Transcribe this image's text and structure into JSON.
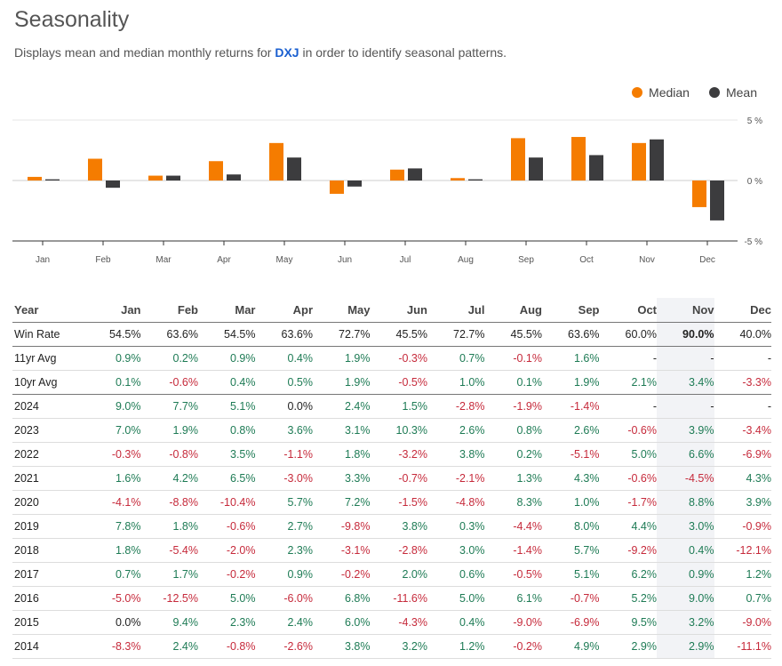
{
  "header": {
    "title": "Seasonality",
    "subtitle_pre": "Displays mean and median monthly returns for ",
    "ticker": "DXJ",
    "subtitle_post": " in order to identify seasonal patterns."
  },
  "chart_data": {
    "type": "bar",
    "categories": [
      "Jan",
      "Feb",
      "Mar",
      "Apr",
      "May",
      "Jun",
      "Jul",
      "Aug",
      "Sep",
      "Oct",
      "Nov",
      "Dec"
    ],
    "series": [
      {
        "name": "Median",
        "color": "#f57c00",
        "values": [
          0.3,
          1.8,
          0.4,
          1.6,
          3.1,
          -1.1,
          0.9,
          0.2,
          3.5,
          3.6,
          3.1,
          -2.2
        ]
      },
      {
        "name": "Mean",
        "color": "#3c3c3e",
        "values": [
          0.1,
          -0.6,
          0.4,
          0.5,
          1.9,
          -0.5,
          1.0,
          0.1,
          1.9,
          2.1,
          3.4,
          -3.3
        ]
      }
    ],
    "ylim": [
      -5,
      5
    ],
    "yticks": [
      "5 %",
      "0 %",
      "-5 %"
    ],
    "legend": "top-right"
  },
  "table": {
    "headers": [
      "Year",
      "Jan",
      "Feb",
      "Mar",
      "Apr",
      "May",
      "Jun",
      "Jul",
      "Aug",
      "Sep",
      "Oct",
      "Nov",
      "Dec"
    ],
    "rows": [
      [
        "Win Rate",
        "54.5%",
        "63.6%",
        "54.5%",
        "63.6%",
        "72.7%",
        "45.5%",
        "72.7%",
        "45.5%",
        "63.6%",
        "60.0%",
        "90.0%",
        "40.0%"
      ],
      [
        "11yr Avg",
        "0.9%",
        "0.2%",
        "0.9%",
        "0.4%",
        "1.9%",
        "-0.3%",
        "0.7%",
        "-0.1%",
        "1.6%",
        "-",
        "-",
        "-"
      ],
      [
        "10yr Avg",
        "0.1%",
        "-0.6%",
        "0.4%",
        "0.5%",
        "1.9%",
        "-0.5%",
        "1.0%",
        "0.1%",
        "1.9%",
        "2.1%",
        "3.4%",
        "-3.3%"
      ],
      [
        "2024",
        "9.0%",
        "7.7%",
        "5.1%",
        "0.0%",
        "2.4%",
        "1.5%",
        "-2.8%",
        "-1.9%",
        "-1.4%",
        "-",
        "-",
        "-"
      ],
      [
        "2023",
        "7.0%",
        "1.9%",
        "0.8%",
        "3.6%",
        "3.1%",
        "10.3%",
        "2.6%",
        "0.8%",
        "2.6%",
        "-0.6%",
        "3.9%",
        "-3.4%"
      ],
      [
        "2022",
        "-0.3%",
        "-0.8%",
        "3.5%",
        "-1.1%",
        "1.8%",
        "-3.2%",
        "3.8%",
        "0.2%",
        "-5.1%",
        "5.0%",
        "6.6%",
        "-6.9%"
      ],
      [
        "2021",
        "1.6%",
        "4.2%",
        "6.5%",
        "-3.0%",
        "3.3%",
        "-0.7%",
        "-2.1%",
        "1.3%",
        "4.3%",
        "-0.6%",
        "-4.5%",
        "4.3%"
      ],
      [
        "2020",
        "-4.1%",
        "-8.8%",
        "-10.4%",
        "5.7%",
        "7.2%",
        "-1.5%",
        "-4.8%",
        "8.3%",
        "1.0%",
        "-1.7%",
        "8.8%",
        "3.9%"
      ],
      [
        "2019",
        "7.8%",
        "1.8%",
        "-0.6%",
        "2.7%",
        "-9.8%",
        "3.8%",
        "0.3%",
        "-4.4%",
        "8.0%",
        "4.4%",
        "3.0%",
        "-0.9%"
      ],
      [
        "2018",
        "1.8%",
        "-5.4%",
        "-2.0%",
        "2.3%",
        "-3.1%",
        "-2.8%",
        "3.0%",
        "-1.4%",
        "5.7%",
        "-9.2%",
        "0.4%",
        "-12.1%"
      ],
      [
        "2017",
        "0.7%",
        "1.7%",
        "-0.2%",
        "0.9%",
        "-0.2%",
        "2.0%",
        "0.6%",
        "-0.5%",
        "5.1%",
        "6.2%",
        "0.9%",
        "1.2%"
      ],
      [
        "2016",
        "-5.0%",
        "-12.5%",
        "5.0%",
        "-6.0%",
        "6.8%",
        "-11.6%",
        "5.0%",
        "6.1%",
        "-0.7%",
        "5.2%",
        "9.0%",
        "0.7%"
      ],
      [
        "2015",
        "0.0%",
        "9.4%",
        "2.3%",
        "2.4%",
        "6.0%",
        "-4.3%",
        "0.4%",
        "-9.0%",
        "-6.9%",
        "9.5%",
        "3.2%",
        "-9.0%"
      ],
      [
        "2014",
        "-8.3%",
        "2.4%",
        "-0.8%",
        "-2.6%",
        "3.8%",
        "3.2%",
        "1.2%",
        "-0.2%",
        "4.9%",
        "2.9%",
        "2.9%",
        "-11.1%"
      ]
    ]
  }
}
